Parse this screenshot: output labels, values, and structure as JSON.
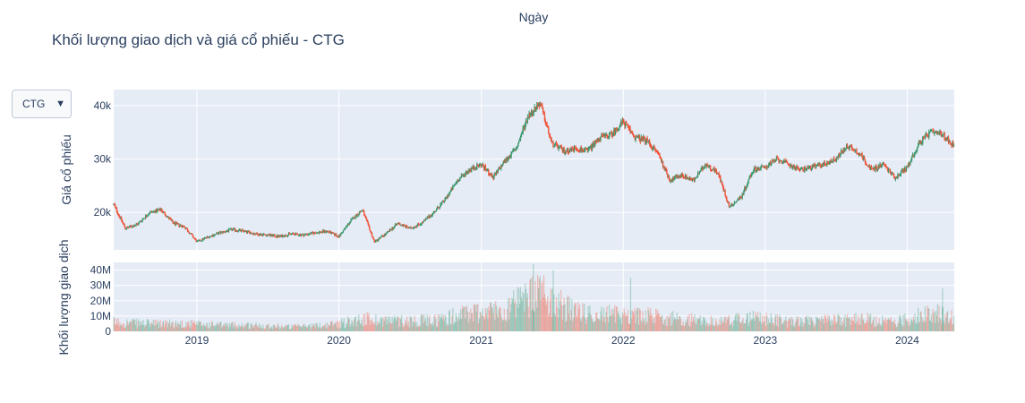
{
  "chart_data": {
    "type": "candlestick+bar",
    "title": "Khối lượng giao dịch và giá cổ phiếu - CTG",
    "xaxis_title": "Ngày",
    "x_ticks": [
      "2019",
      "2020",
      "2021",
      "2022",
      "2023",
      "2024"
    ],
    "x_range": [
      "2018-06-01",
      "2024-05-01"
    ],
    "price_panel": {
      "ylabel": "Giá cổ phiếu",
      "ylim": [
        13000,
        43000
      ],
      "yticks": [
        {
          "value": 20000,
          "label": "20k"
        },
        {
          "value": 30000,
          "label": "30k"
        },
        {
          "value": 40000,
          "label": "40k"
        }
      ],
      "close_series": [
        [
          "2018-06-01",
          21500
        ],
        [
          "2018-07-01",
          17000
        ],
        [
          "2018-08-01",
          17800
        ],
        [
          "2018-09-01",
          20000
        ],
        [
          "2018-10-01",
          20500
        ],
        [
          "2018-11-01",
          18000
        ],
        [
          "2018-12-01",
          17300
        ],
        [
          "2019-01-01",
          14500
        ],
        [
          "2019-02-01",
          15500
        ],
        [
          "2019-03-01",
          16200
        ],
        [
          "2019-04-01",
          16800
        ],
        [
          "2019-05-01",
          16500
        ],
        [
          "2019-06-01",
          16000
        ],
        [
          "2019-07-01",
          15800
        ],
        [
          "2019-08-01",
          15500
        ],
        [
          "2019-09-01",
          16000
        ],
        [
          "2019-10-01",
          15800
        ],
        [
          "2019-11-01",
          16200
        ],
        [
          "2019-12-01",
          16500
        ],
        [
          "2020-01-01",
          15500
        ],
        [
          "2020-02-01",
          18500
        ],
        [
          "2020-03-01",
          20500
        ],
        [
          "2020-04-01",
          14500
        ],
        [
          "2020-05-01",
          16000
        ],
        [
          "2020-06-01",
          18000
        ],
        [
          "2020-07-01",
          17000
        ],
        [
          "2020-08-01",
          18000
        ],
        [
          "2020-09-01",
          20000
        ],
        [
          "2020-10-01",
          22500
        ],
        [
          "2020-11-01",
          26000
        ],
        [
          "2020-12-01",
          28000
        ],
        [
          "2021-01-01",
          29000
        ],
        [
          "2021-02-01",
          26500
        ],
        [
          "2021-03-01",
          29500
        ],
        [
          "2021-04-01",
          32000
        ],
        [
          "2021-05-01",
          38000
        ],
        [
          "2021-06-01",
          40500
        ],
        [
          "2021-07-01",
          33000
        ],
        [
          "2021-08-01",
          31500
        ],
        [
          "2021-09-01",
          32000
        ],
        [
          "2021-10-01",
          31500
        ],
        [
          "2021-11-01",
          34000
        ],
        [
          "2021-12-01",
          34500
        ],
        [
          "2022-01-01",
          37000
        ],
        [
          "2022-02-01",
          34000
        ],
        [
          "2022-03-01",
          33500
        ],
        [
          "2022-04-01",
          31000
        ],
        [
          "2022-05-01",
          26000
        ],
        [
          "2022-06-01",
          27000
        ],
        [
          "2022-07-01",
          26000
        ],
        [
          "2022-08-01",
          29000
        ],
        [
          "2022-09-01",
          27500
        ],
        [
          "2022-10-01",
          21000
        ],
        [
          "2022-11-01",
          23000
        ],
        [
          "2022-12-01",
          28000
        ],
        [
          "2023-01-01",
          28500
        ],
        [
          "2023-02-01",
          30000
        ],
        [
          "2023-03-01",
          29000
        ],
        [
          "2023-04-01",
          28000
        ],
        [
          "2023-05-01",
          28500
        ],
        [
          "2023-06-01",
          29000
        ],
        [
          "2023-07-01",
          30000
        ],
        [
          "2023-08-01",
          32500
        ],
        [
          "2023-09-01",
          31000
        ],
        [
          "2023-10-01",
          28000
        ],
        [
          "2023-11-01",
          29000
        ],
        [
          "2023-12-01",
          26500
        ],
        [
          "2024-01-01",
          28500
        ],
        [
          "2024-02-01",
          33000
        ],
        [
          "2024-03-01",
          35000
        ],
        [
          "2024-04-01",
          34500
        ],
        [
          "2024-05-01",
          32500
        ]
      ]
    },
    "volume_panel": {
      "ylabel": "Khối lượng giao dịch",
      "ylim": [
        0,
        45000000
      ],
      "yticks": [
        {
          "value": 0,
          "label": "0"
        },
        {
          "value": 10000000,
          "label": "10M"
        },
        {
          "value": 20000000,
          "label": "20M"
        },
        {
          "value": 30000000,
          "label": "30M"
        },
        {
          "value": 40000000,
          "label": "40M"
        }
      ],
      "volume_series": [
        [
          "2018-06-01",
          6000000
        ],
        [
          "2018-09-01",
          5000000
        ],
        [
          "2018-12-01",
          5000000
        ],
        [
          "2019-03-01",
          4000000
        ],
        [
          "2019-06-01",
          4000000
        ],
        [
          "2019-09-01",
          3000000
        ],
        [
          "2019-12-01",
          4000000
        ],
        [
          "2020-03-01",
          8000000
        ],
        [
          "2020-06-01",
          7000000
        ],
        [
          "2020-09-01",
          7000000
        ],
        [
          "2020-12-01",
          12000000
        ],
        [
          "2021-03-01",
          14000000
        ],
        [
          "2021-06-01",
          25000000
        ],
        [
          "2021-09-01",
          12000000
        ],
        [
          "2021-12-01",
          11000000
        ],
        [
          "2022-03-01",
          10000000
        ],
        [
          "2022-06-01",
          8000000
        ],
        [
          "2022-09-01",
          6000000
        ],
        [
          "2022-12-01",
          9000000
        ],
        [
          "2023-03-01",
          6000000
        ],
        [
          "2023-06-01",
          7000000
        ],
        [
          "2023-09-01",
          8000000
        ],
        [
          "2023-12-01",
          6000000
        ],
        [
          "2024-03-01",
          12000000
        ],
        [
          "2024-05-01",
          10000000
        ]
      ],
      "volume_spikes": [
        [
          "2021-05-15",
          44000000
        ],
        [
          "2021-07-05",
          40000000
        ],
        [
          "2022-01-20",
          35000000
        ],
        [
          "2024-04-01",
          28000000
        ]
      ]
    },
    "colors": {
      "increasing": "#3d9970",
      "decreasing": "#ef553b",
      "plot_bg": "#e5ecf6",
      "grid": "#ffffff"
    }
  },
  "dropdown": {
    "selected": "CTG",
    "arrow": "▼"
  }
}
